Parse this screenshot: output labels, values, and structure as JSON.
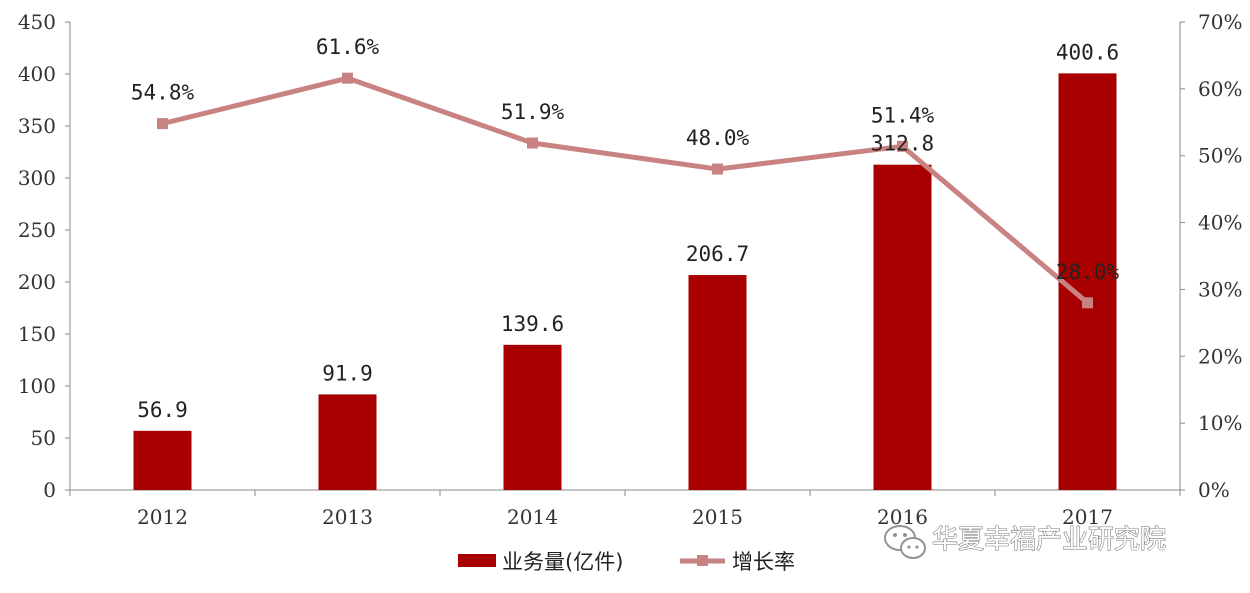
{
  "chart_data": {
    "type": "bar",
    "categories": [
      "2012",
      "2013",
      "2014",
      "2015",
      "2016",
      "2017"
    ],
    "series": [
      {
        "name": "业务量(亿件)",
        "type": "bar",
        "axis": "left",
        "color": "#a80000",
        "values": [
          56.9,
          91.9,
          139.6,
          206.7,
          312.8,
          400.6
        ],
        "labels": [
          "56.9",
          "91.9",
          "139.6",
          "206.7",
          "312.8",
          "400.6"
        ]
      },
      {
        "name": "增长率",
        "type": "line",
        "axis": "right",
        "color": "#c98282",
        "values": [
          54.8,
          61.6,
          51.9,
          48.0,
          51.4,
          28.0
        ],
        "labels": [
          "54.8%",
          "61.6%",
          "51.9%",
          "48.0%",
          "51.4%",
          "28.0%"
        ]
      }
    ],
    "y_left": {
      "lim": [
        0,
        450
      ],
      "ticks": [
        "0",
        "50",
        "100",
        "150",
        "200",
        "250",
        "300",
        "350",
        "400",
        "450"
      ]
    },
    "y_right": {
      "lim": [
        0,
        70
      ],
      "ticks": [
        "0%",
        "10%",
        "20%",
        "30%",
        "40%",
        "50%",
        "60%",
        "70%"
      ]
    },
    "grid": false,
    "legend": "bottom-center"
  },
  "watermark": {
    "text": "华夏幸福产业研究院",
    "icon": "wechat-icon"
  }
}
